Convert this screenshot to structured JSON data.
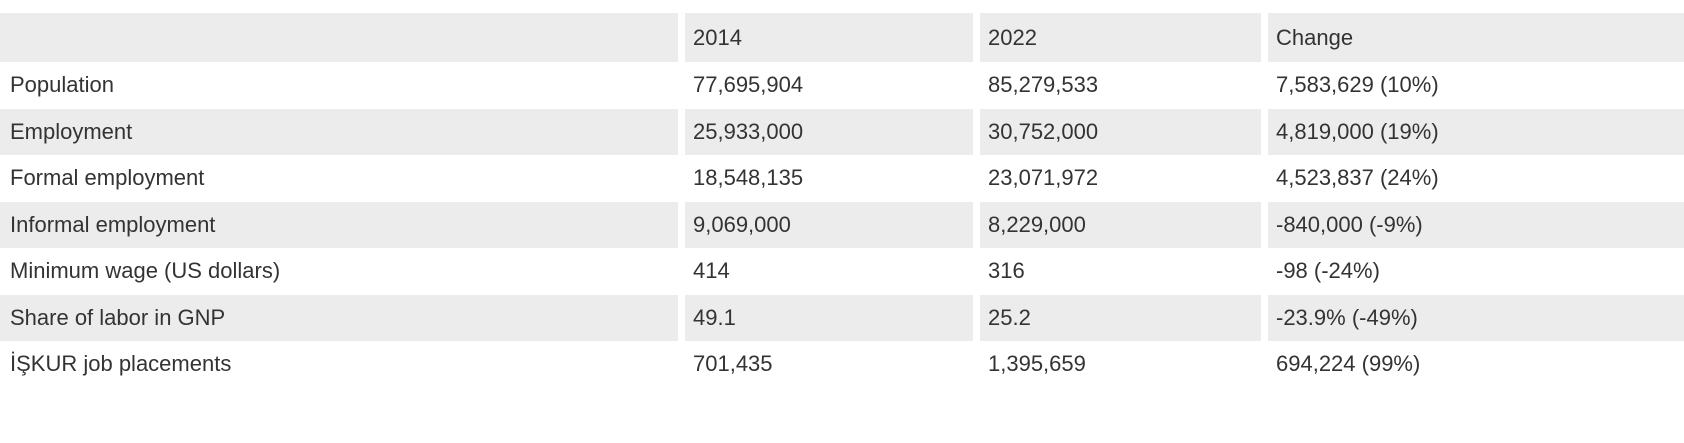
{
  "colors": {
    "stripe": "#ececec",
    "text": "#333333",
    "background": "#ffffff"
  },
  "chart_data": {
    "type": "table",
    "title": "",
    "columns": [
      "",
      "2014",
      "2022",
      "Change"
    ],
    "rows": [
      [
        "Population",
        "77,695,904",
        "85,279,533",
        "7,583,629 (10%)"
      ],
      [
        "Employment",
        "25,933,000",
        "30,752,000",
        "4,819,000 (19%)"
      ],
      [
        "Formal employment",
        "18,548,135",
        "23,071,972",
        "4,523,837 (24%)"
      ],
      [
        "Informal employment",
        "9,069,000",
        "8,229,000",
        "-840,000 (-9%)"
      ],
      [
        "Minimum wage (US dollars)",
        "414",
        "316",
        "-98 (-24%)"
      ],
      [
        "Share of labor in GNP",
        "49.1",
        "25.2",
        "-23.9% (-49%)"
      ],
      [
        "İŞKUR job placements",
        "701,435",
        "1,395,659",
        "694,224 (99%)"
      ]
    ]
  }
}
